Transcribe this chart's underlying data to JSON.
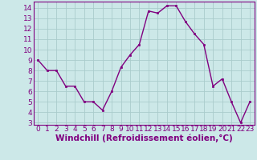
{
  "x": [
    0,
    1,
    2,
    3,
    4,
    5,
    6,
    7,
    8,
    9,
    10,
    11,
    12,
    13,
    14,
    15,
    16,
    17,
    18,
    19,
    20,
    21,
    22,
    23
  ],
  "y": [
    9.0,
    8.0,
    8.0,
    6.5,
    6.5,
    5.0,
    5.0,
    4.2,
    6.0,
    8.3,
    9.5,
    10.5,
    13.7,
    13.5,
    14.2,
    14.2,
    12.7,
    11.5,
    10.5,
    6.5,
    7.2,
    5.0,
    3.0,
    5.0
  ],
  "line_color": "#800080",
  "marker_color": "#800080",
  "bg_color": "#cce8e8",
  "grid_color": "#aacccc",
  "xlabel": "Windchill (Refroidissement éolien,°C)",
  "xlabel_color": "#800080",
  "ylim_min": 2.8,
  "ylim_max": 14.6,
  "xlim_min": -0.5,
  "xlim_max": 23.5,
  "yticks": [
    3,
    4,
    5,
    6,
    7,
    8,
    9,
    10,
    11,
    12,
    13,
    14
  ],
  "xticks": [
    0,
    1,
    2,
    3,
    4,
    5,
    6,
    7,
    8,
    9,
    10,
    11,
    12,
    13,
    14,
    15,
    16,
    17,
    18,
    19,
    20,
    21,
    22,
    23
  ],
  "tick_label_fontsize": 6.5,
  "xlabel_fontsize": 7.5
}
